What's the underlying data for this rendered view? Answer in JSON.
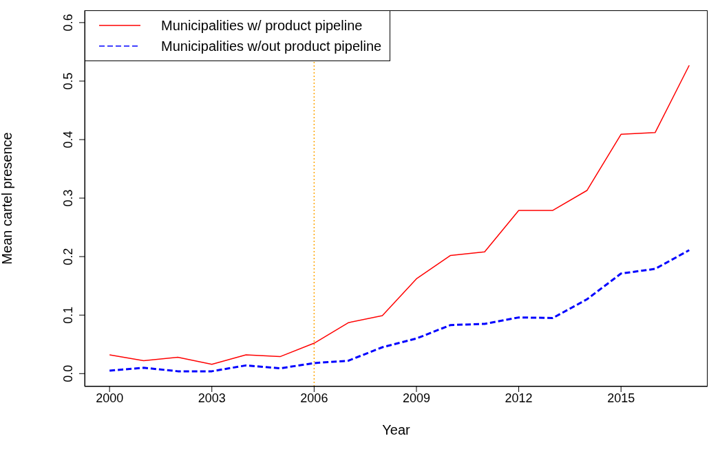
{
  "chart_data": {
    "type": "line",
    "xlabel": "Year",
    "ylabel": "Mean cartel presence",
    "x": [
      2000,
      2001,
      2002,
      2003,
      2004,
      2005,
      2006,
      2007,
      2008,
      2009,
      2010,
      2011,
      2012,
      2013,
      2014,
      2015,
      2016,
      2017
    ],
    "series": [
      {
        "name": "Municipalities w/ product pipeline",
        "color": "#ff0000",
        "line_style": "solid",
        "values": [
          0.032,
          0.022,
          0.028,
          0.016,
          0.032,
          0.029,
          0.052,
          0.087,
          0.099,
          0.162,
          0.202,
          0.208,
          0.279,
          0.279,
          0.313,
          0.409,
          0.412,
          0.527
        ]
      },
      {
        "name": "Municipalities w/out product pipeline",
        "color": "#0000ff",
        "line_style": "dashed",
        "values": [
          0.005,
          0.01,
          0.004,
          0.004,
          0.014,
          0.009,
          0.018,
          0.022,
          0.045,
          0.06,
          0.083,
          0.085,
          0.096,
          0.095,
          0.127,
          0.171,
          0.179,
          0.211
        ]
      }
    ],
    "xlim": [
      1999.27,
      2017.54
    ],
    "xticks": [
      2000,
      2003,
      2006,
      2009,
      2012,
      2015
    ],
    "ylim": [
      -0.022,
      0.621
    ],
    "yticks": [
      {
        "value": 0,
        "label": "0.0"
      },
      0.1,
      0.2,
      0.3,
      0.4,
      0.5,
      0.6
    ],
    "ref_lines": [
      {
        "axis": "x",
        "value": 2006,
        "color": "#ffa500",
        "line_style": "dotted"
      }
    ],
    "grid": false,
    "legend": "top left",
    "marker": "none"
  }
}
